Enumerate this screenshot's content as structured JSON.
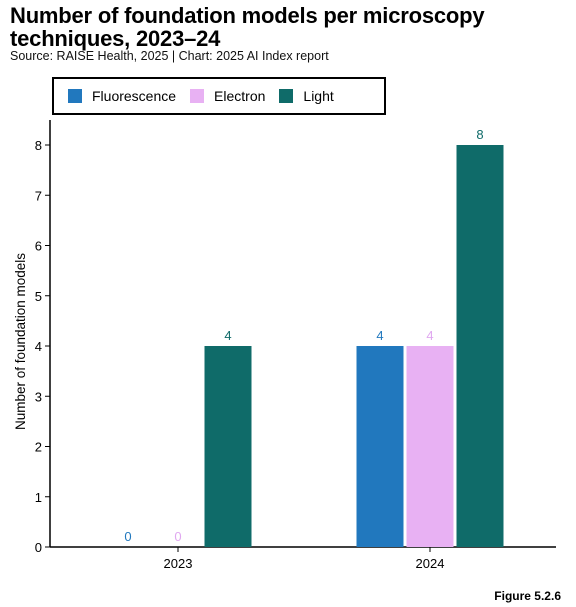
{
  "title": "Number of foundation models per microscopy techniques, 2023–24",
  "subtitle": "Source: RAISE Health, 2025 | Chart: 2025 AI Index report",
  "figure_label": "Figure 5.2.6",
  "chart_data": {
    "type": "bar",
    "categories": [
      "2023",
      "2024"
    ],
    "series": [
      {
        "name": "Fluorescence",
        "values": [
          0,
          4
        ],
        "color": "#2178be"
      },
      {
        "name": "Electron",
        "values": [
          0,
          4
        ],
        "color": "#e8b1f3"
      },
      {
        "name": "Light",
        "values": [
          4,
          8
        ],
        "color": "#0f6b69"
      }
    ],
    "label_colors": [
      "#2178be",
      "#e0a8f0",
      "#0f6b69"
    ],
    "xlabel": "",
    "ylabel": "Number of foundation models",
    "ylim": [
      0,
      8
    ],
    "yticks": [
      0,
      1,
      2,
      3,
      4,
      5,
      6,
      7,
      8
    ],
    "grid": false,
    "legend_position": "top-left"
  }
}
